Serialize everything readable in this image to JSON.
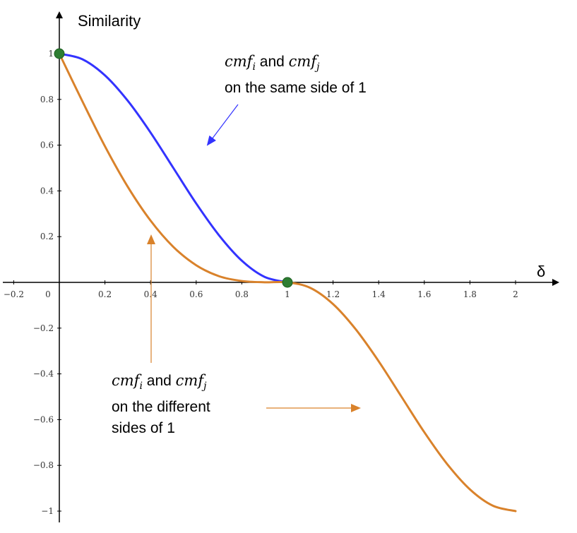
{
  "chart_data": {
    "type": "line",
    "xlabel": "δ",
    "ylabel": "Similarity",
    "xlim": [
      -0.25,
      2.2
    ],
    "ylim": [
      -1.05,
      1.12
    ],
    "x_ticks": [
      "−0.2",
      "0",
      "0.2",
      "0.4",
      "0.6",
      "0.8",
      "1",
      "1.2",
      "1.4",
      "1.6",
      "1.8",
      "2"
    ],
    "y_ticks": [
      "1",
      "0.8",
      "0.6",
      "0.4",
      "0.2",
      "−0.2",
      "−0.4",
      "−0.6",
      "−0.8",
      "−1"
    ],
    "grid": false,
    "series": [
      {
        "color": "#3333ff",
        "x": [
          0,
          0.1,
          0.2,
          0.3,
          0.4,
          0.5,
          0.6,
          0.7,
          0.8,
          0.9,
          1
        ],
        "y": [
          1,
          0.976,
          0.905,
          0.794,
          0.655,
          0.5,
          0.345,
          0.206,
          0.095,
          0.024,
          0
        ]
      },
      {
        "color": "#d9822b",
        "x": [
          0,
          0.1,
          0.2,
          0.3,
          0.4,
          0.5,
          0.6,
          0.7,
          0.8,
          0.9,
          1,
          1.1,
          1.2,
          1.3,
          1.4,
          1.5,
          1.6,
          1.7,
          1.8,
          1.9,
          2
        ],
        "y": [
          1,
          0.794,
          0.595,
          0.418,
          0.27,
          0.155,
          0.075,
          0.027,
          0.006,
          0.0005,
          0,
          -0.024,
          -0.095,
          -0.206,
          -0.345,
          -0.5,
          -0.655,
          -0.794,
          -0.905,
          -0.976,
          -1
        ]
      }
    ],
    "markers": [
      {
        "x": 0,
        "y": 1,
        "color": "#2e7d32"
      },
      {
        "x": 1,
        "y": 0,
        "color": "#2e7d32"
      }
    ],
    "annotations": [
      {
        "name_part": "cmf",
        "sub_i": "i",
        "connector": "and",
        "name_part2": "cmf",
        "sub_j": "j",
        "text": "on the same side of 1",
        "arrow_color": "#3333ff"
      },
      {
        "name_part": "cmf",
        "sub_i": "i",
        "connector": "and",
        "name_part2": "cmf",
        "sub_j": "j",
        "line2": "on the different",
        "line3": "sides of 1",
        "arrow_color": "#d9822b"
      }
    ]
  }
}
